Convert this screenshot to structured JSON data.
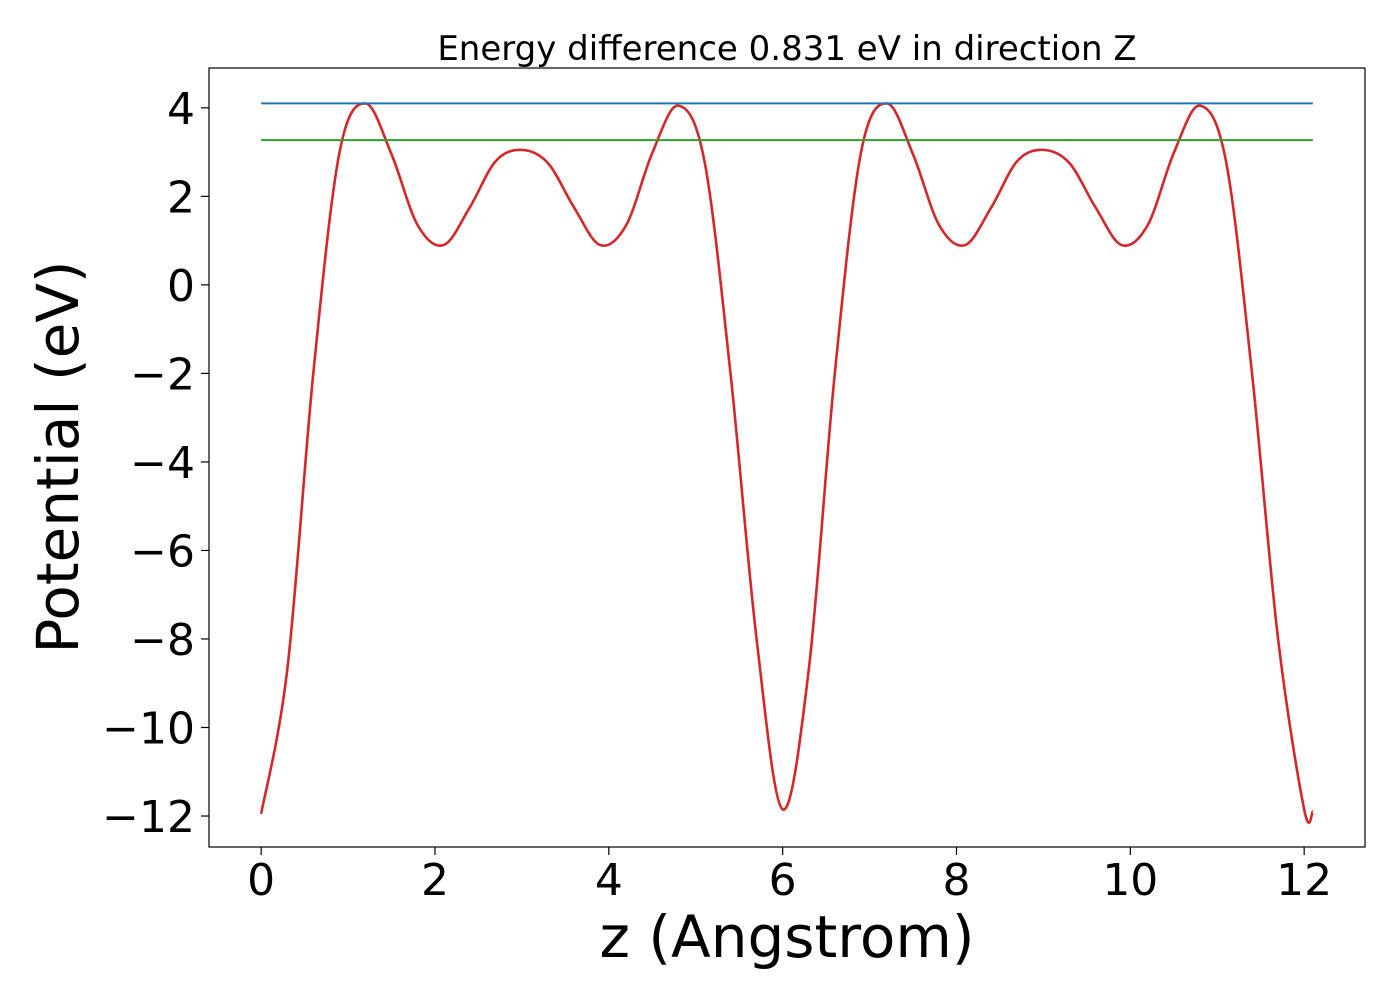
{
  "chart_data": {
    "type": "line",
    "title": "Energy difference 0.831 eV in direction Z",
    "xlabel": "z (Angstrom)",
    "ylabel": "Potential (eV)",
    "xlim": [
      -0.6,
      12.7
    ],
    "ylim": [
      -12.7,
      4.9
    ],
    "xticks": [
      0,
      2,
      4,
      6,
      8,
      10,
      12
    ],
    "yticks": [
      4,
      2,
      0,
      -2,
      -4,
      -6,
      -8,
      -10,
      -12
    ],
    "grid": false,
    "series": [
      {
        "color": "#d62728",
        "x": [
          0.0,
          0.3,
          0.6,
          0.9,
          1.2,
          1.5,
          1.8,
          2.1,
          2.4,
          2.7,
          3.0,
          3.3,
          3.6,
          3.9,
          4.2,
          4.5,
          4.8,
          5.1,
          5.4,
          5.7,
          6.0,
          6.3,
          6.6,
          6.9,
          7.2,
          7.5,
          7.8,
          8.1,
          8.4,
          8.7,
          9.0,
          9.3,
          9.6,
          9.9,
          10.2,
          10.5,
          10.8,
          11.1,
          11.4,
          11.7,
          12.0,
          12.1
        ],
        "y": [
          -11.95,
          -8.7,
          -2.0,
          2.98,
          4.1,
          2.95,
          1.35,
          0.9,
          1.75,
          2.8,
          3.05,
          2.75,
          1.75,
          0.9,
          1.35,
          2.98,
          4.05,
          2.8,
          -2.0,
          -8.0,
          -11.85,
          -8.7,
          -2.0,
          2.98,
          4.1,
          2.95,
          1.35,
          0.9,
          1.75,
          2.8,
          3.05,
          2.75,
          1.75,
          0.9,
          1.35,
          2.98,
          4.05,
          2.8,
          -2.0,
          -8.0,
          -11.85,
          -11.9
        ]
      },
      {
        "color": "#1f77b4",
        "x": [
          0.0,
          12.1
        ],
        "y": [
          4.1,
          4.1
        ]
      },
      {
        "color": "#2ca02c",
        "x": [
          0.0,
          12.1
        ],
        "y": [
          3.27,
          3.27
        ]
      }
    ]
  }
}
